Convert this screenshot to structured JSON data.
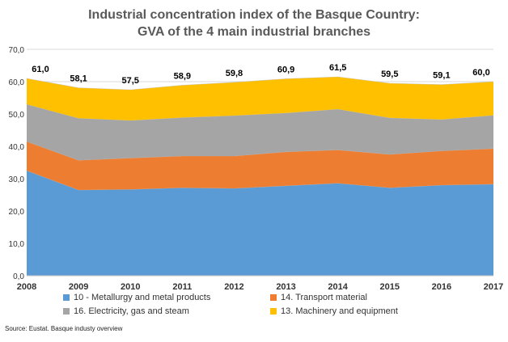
{
  "chart_data": {
    "type": "area",
    "stacked": true,
    "title": [
      "Industrial concentration index of the Basque Country:",
      "GVA of the 4 main industrial branches"
    ],
    "x": [
      "2008",
      "2009",
      "2010",
      "2011",
      "2012",
      "2013",
      "2014",
      "2015",
      "2016",
      "2017"
    ],
    "y_ticks": [
      "0,0",
      "10,0",
      "20,0",
      "30,0",
      "40,0",
      "50,0",
      "60,0",
      "70,0"
    ],
    "ylim": [
      0,
      70
    ],
    "grid": true,
    "series": [
      {
        "name": "10 - Metallurgy and metal products",
        "color": "#5B9BD5",
        "values": [
          32.5,
          26.5,
          26.7,
          27.2,
          27.0,
          27.8,
          28.6,
          27.2,
          28.0,
          28.3
        ]
      },
      {
        "name": "14. Transport material",
        "color": "#ED7D31",
        "values": [
          9.0,
          9.2,
          9.7,
          9.8,
          10.0,
          10.5,
          10.3,
          10.3,
          10.6,
          11.0
        ]
      },
      {
        "name": "16. Electricity, gas and steam",
        "color": "#A5A5A5",
        "values": [
          11.5,
          13.0,
          11.6,
          11.9,
          12.5,
          12.0,
          12.6,
          11.3,
          9.7,
          10.3
        ]
      },
      {
        "name": "13. Machinery and equipment",
        "color": "#FFC000",
        "values": [
          8.0,
          9.4,
          9.5,
          10.0,
          10.3,
          10.6,
          10.0,
          10.7,
          10.8,
          10.4
        ]
      }
    ],
    "totals": [
      61.0,
      58.1,
      57.5,
      58.9,
      59.8,
      60.9,
      61.5,
      59.5,
      59.1,
      60.0
    ],
    "total_labels": [
      "61,0",
      "58,1",
      "57,5",
      "58,9",
      "59,8",
      "60,9",
      "61,5",
      "59,5",
      "59,1",
      "60,0"
    ],
    "legend_position": "bottom"
  },
  "source": "Source: Eustat. Basque  industy overview"
}
